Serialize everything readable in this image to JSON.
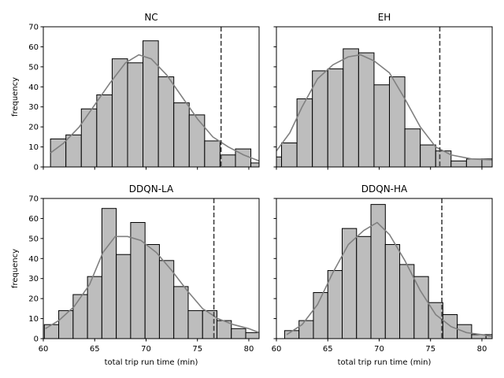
{
  "chart_data": [
    {
      "type": "bar",
      "title": "NC",
      "xlabel": "",
      "ylabel": "frequency",
      "xlim": [
        60,
        81
      ],
      "ylim": [
        0,
        70
      ],
      "yticks": [
        0,
        10,
        20,
        30,
        40,
        50,
        60,
        70
      ],
      "xticks": [
        60,
        65,
        70,
        75,
        80
      ],
      "bin_edges": [
        60.7,
        62.2,
        63.7,
        65.2,
        66.7,
        68.2,
        69.7,
        71.2,
        72.7,
        74.2,
        75.7,
        77.2,
        78.7,
        80.2,
        81.7
      ],
      "values": [
        14,
        16,
        29,
        36,
        54,
        52,
        63,
        45,
        32,
        26,
        13,
        6,
        9,
        2
      ],
      "kde": [
        [
          60.7,
          7
        ],
        [
          62,
          12
        ],
        [
          63.5,
          20
        ],
        [
          65,
          31
        ],
        [
          66.5,
          42
        ],
        [
          68,
          52
        ],
        [
          69.3,
          56
        ],
        [
          70.5,
          54
        ],
        [
          72,
          46
        ],
        [
          73.5,
          35
        ],
        [
          75,
          24
        ],
        [
          76.5,
          15
        ],
        [
          78,
          10
        ],
        [
          79.5,
          6
        ],
        [
          81,
          3
        ]
      ],
      "vline": 77.3
    },
    {
      "type": "bar",
      "title": "EH",
      "xlabel": "",
      "ylabel": "",
      "xlim": [
        60,
        81
      ],
      "ylim": [
        0,
        70
      ],
      "yticks": [
        0,
        10,
        20,
        30,
        40,
        50,
        60,
        70
      ],
      "xticks": [
        60,
        65,
        70,
        75,
        80
      ],
      "bin_edges": [
        58.9,
        60.5,
        62,
        63.5,
        65,
        66.5,
        68,
        69.5,
        71,
        72.5,
        74,
        75.5,
        77,
        78.5,
        80,
        81.5
      ],
      "values": [
        5,
        12,
        34,
        48,
        49,
        59,
        57,
        41,
        45,
        19,
        11,
        8,
        3,
        4,
        4
      ],
      "kde": [
        [
          60,
          8
        ],
        [
          61.3,
          17
        ],
        [
          62.5,
          30
        ],
        [
          64,
          44
        ],
        [
          65.5,
          51
        ],
        [
          67,
          55
        ],
        [
          68.2,
          56
        ],
        [
          69.5,
          53
        ],
        [
          71,
          47
        ],
        [
          72.5,
          34
        ],
        [
          74,
          20
        ],
        [
          75.5,
          10
        ],
        [
          77,
          6
        ],
        [
          79,
          4
        ],
        [
          81,
          3.5
        ]
      ],
      "vline": 75.9
    },
    {
      "type": "bar",
      "title": "DDQN-LA",
      "xlabel": "total trip run time (min)",
      "ylabel": "frequency",
      "xlim": [
        60,
        81
      ],
      "ylim": [
        0,
        70
      ],
      "yticks": [
        0,
        10,
        20,
        30,
        40,
        50,
        60,
        70
      ],
      "xticks": [
        60,
        65,
        70,
        75,
        80
      ],
      "bin_edges": [
        60.1,
        61.5,
        62.9,
        64.3,
        65.7,
        67.1,
        68.5,
        69.9,
        71.3,
        72.7,
        74.1,
        75.5,
        76.9,
        78.3,
        79.7,
        81.1
      ],
      "values": [
        7,
        14,
        22,
        31,
        65,
        42,
        58,
        47,
        39,
        26,
        14,
        14,
        9,
        5,
        3
      ],
      "kde": [
        [
          60.2,
          5
        ],
        [
          61.5,
          9
        ],
        [
          63,
          16
        ],
        [
          64.5,
          27
        ],
        [
          65.8,
          43
        ],
        [
          67,
          51
        ],
        [
          68.2,
          51
        ],
        [
          69.5,
          49
        ],
        [
          71,
          43
        ],
        [
          72.5,
          34
        ],
        [
          74,
          24
        ],
        [
          75.5,
          15
        ],
        [
          77,
          10
        ],
        [
          78.5,
          7
        ],
        [
          80,
          5
        ],
        [
          81,
          3
        ]
      ],
      "vline": 76.6
    },
    {
      "type": "bar",
      "title": "DDQN-HA",
      "xlabel": "total trip run time (min)",
      "ylabel": "",
      "xlim": [
        60,
        81
      ],
      "ylim": [
        0,
        70
      ],
      "yticks": [
        0,
        10,
        20,
        30,
        40,
        50,
        60,
        70
      ],
      "xticks": [
        60,
        65,
        70,
        75,
        80
      ],
      "bin_edges": [
        60.8,
        62.2,
        63.6,
        65,
        66.4,
        67.8,
        69.2,
        70.6,
        72,
        73.4,
        74.8,
        76.2,
        77.6,
        79,
        80.4,
        81.8
      ],
      "values": [
        4,
        9,
        23,
        34,
        55,
        51,
        67,
        47,
        37,
        31,
        18,
        12,
        7,
        2,
        2
      ],
      "kde": [
        [
          61,
          2
        ],
        [
          62.5,
          7
        ],
        [
          64,
          17
        ],
        [
          65.5,
          33
        ],
        [
          67,
          47
        ],
        [
          68.5,
          54
        ],
        [
          69.8,
          58
        ],
        [
          71,
          52
        ],
        [
          72.5,
          39
        ],
        [
          74,
          24
        ],
        [
          75.5,
          12
        ],
        [
          77,
          6
        ],
        [
          78.5,
          3
        ],
        [
          80,
          2
        ],
        [
          81,
          1
        ]
      ],
      "vline": 76.1
    }
  ]
}
